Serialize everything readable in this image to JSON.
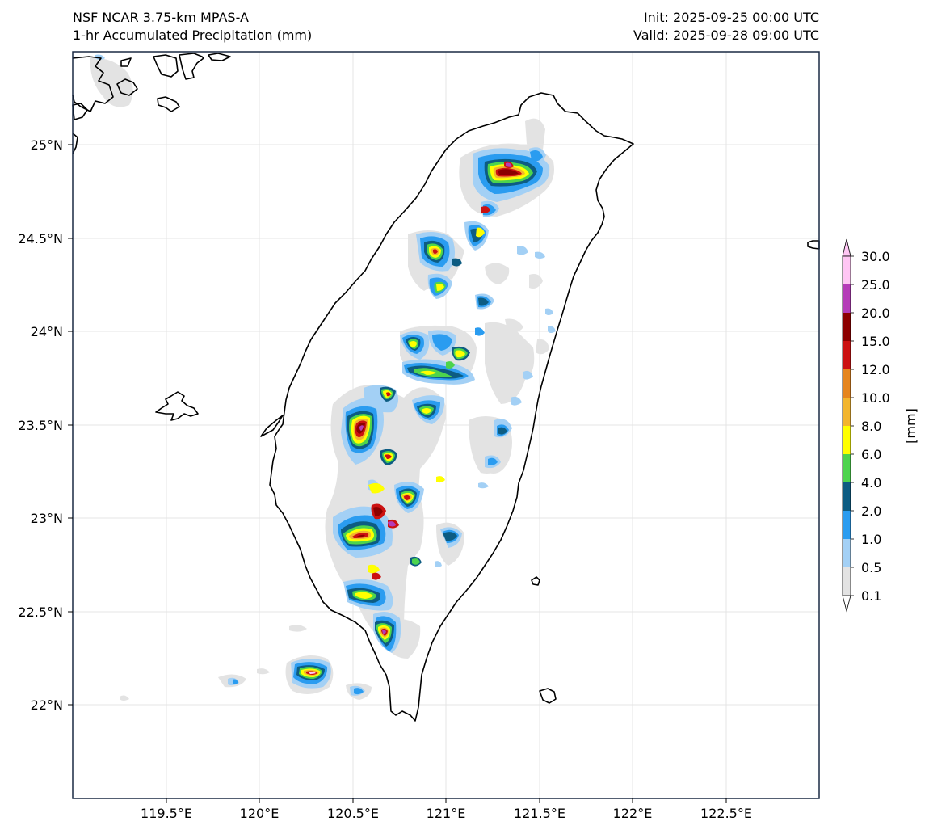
{
  "header": {
    "model": "NSF NCAR 3.75-km MPAS-A",
    "field": "1-hr Accumulated Precipitation (mm)",
    "init": "Init: 2025-09-25 00:00 UTC",
    "valid": "Valid: 2025-09-28 09:00 UTC"
  },
  "map": {
    "region": "Taiwan",
    "lon_range": [
      119.0,
      123.0
    ],
    "lat_range": [
      21.5,
      25.5
    ],
    "lon_ticks": [
      "119.5°E",
      "120°E",
      "120.5°E",
      "121°E",
      "121.5°E",
      "122°E",
      "122.5°E"
    ],
    "lat_ticks": [
      "25°N",
      "24.5°N",
      "24°N",
      "23.5°N",
      "23°N",
      "22.5°N",
      "22°N"
    ]
  },
  "colorbar": {
    "unit_label": "[mm]",
    "levels": [
      "30.0",
      "25.0",
      "20.0",
      "15.0",
      "12.0",
      "10.0",
      "8.0",
      "6.0",
      "4.0",
      "2.0",
      "1.0",
      "0.5",
      "0.1"
    ],
    "colors": [
      "#ffc6f4",
      "#b53cb8",
      "#8c0000",
      "#cc1111",
      "#e6851e",
      "#f2b52e",
      "#ffff00",
      "#4dd44d",
      "#0d5c82",
      "#2a9cf0",
      "#a3d0f5",
      "#e3e3e3"
    ]
  }
}
